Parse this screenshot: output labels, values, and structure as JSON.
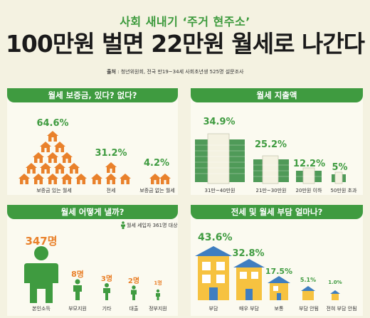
{
  "header": {
    "subtitle": "사회 새내기 ‘주거 현주소’",
    "title": "100만원 벌면 22만원 월세로 나간다",
    "source_label": "출처",
    "source_text": " : 청년위원회, 전국 만19~34세 사회초년생 525명 설문조사"
  },
  "colors": {
    "green": "#3f9b40",
    "orange": "#e9812b",
    "background": "#f4f2e1"
  },
  "panels": {
    "deposit": {
      "title": "월세 보증금, 있다? 없다?",
      "items": [
        {
          "label": "보증금 있는 월세",
          "value_text": "64.6%"
        },
        {
          "label": "전세",
          "value_text": "31.2%"
        },
        {
          "label": "보증금 없는 월세",
          "value_text": "4.2%"
        }
      ]
    },
    "expense": {
      "title": "월세 지출액",
      "items": [
        {
          "label": "31만~40만원",
          "value_text": "34.9%"
        },
        {
          "label": "21만~30만원",
          "value_text": "25.2%"
        },
        {
          "label": "20만원 이하",
          "value_text": "12.2%"
        },
        {
          "label": "50만원 초과",
          "value_text": "5%"
        }
      ]
    },
    "payment": {
      "title": "월세 어떻게 낼까?",
      "note": "월세 세입자 361명 대상",
      "items": [
        {
          "label": "본인소득",
          "value_text": "347명"
        },
        {
          "label": "부모지원",
          "value_text": "8명"
        },
        {
          "label": "기타",
          "value_text": "3명"
        },
        {
          "label": "대출",
          "value_text": "2명"
        },
        {
          "label": "정부지원",
          "value_text": "1명"
        }
      ]
    },
    "burden": {
      "title": "전세 및 월세 부담 얼마나?",
      "items": [
        {
          "label": "부담",
          "value_text": "43.6%"
        },
        {
          "label": "매우 부담",
          "value_text": "32.8%"
        },
        {
          "label": "보통",
          "value_text": "17.5%"
        },
        {
          "label": "부담 안됨",
          "value_text": "5.1%"
        },
        {
          "label": "전혀 부담 안됨",
          "value_text": "1.0%"
        }
      ]
    }
  }
}
